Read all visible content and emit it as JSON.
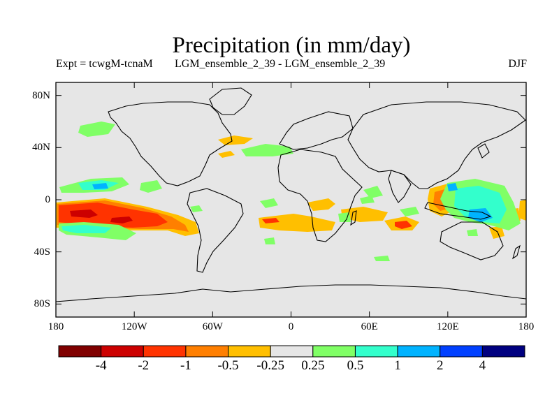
{
  "title": "Precipitation (in mm/day)",
  "experiment_label": "Expt = tcwgM-tcnaM",
  "comparison_label": "LGM_ensemble_2_39 - LGM_ensemble_2_39",
  "season": "DJF",
  "map": {
    "lon_range": [
      -180,
      180
    ],
    "lat_range": [
      -90,
      90
    ],
    "background_color": "#e6e6e6",
    "lat_ticks": [
      {
        "value": 80,
        "label": "80N"
      },
      {
        "value": 40,
        "label": "40N"
      },
      {
        "value": 0,
        "label": "0"
      },
      {
        "value": -40,
        "label": "40S"
      },
      {
        "value": -80,
        "label": "80S"
      }
    ],
    "lon_ticks": [
      {
        "value": -180,
        "label": "180"
      },
      {
        "value": -120,
        "label": "120W"
      },
      {
        "value": -60,
        "label": "60W"
      },
      {
        "value": 0,
        "label": "0"
      },
      {
        "value": 60,
        "label": "60E"
      },
      {
        "value": 120,
        "label": "120E"
      },
      {
        "value": 180,
        "label": "180"
      }
    ]
  },
  "colorbar": {
    "colors": [
      "#800000",
      "#cc0000",
      "#ff3300",
      "#ff7f00",
      "#ffbf00",
      "#e6e6e6",
      "#80ff66",
      "#33ffcc",
      "#00b3ff",
      "#0040ff",
      "#000080"
    ],
    "labels": [
      "-4",
      "-2",
      "-1",
      "-0.5",
      "-0.25",
      "0.25",
      "0.5",
      "1",
      "2",
      "4"
    ]
  },
  "anomaly_regions": [
    {
      "name": "tropical-east-pacific-strong-decrease",
      "level": "-1 to -2",
      "color": "#ff3300"
    },
    {
      "name": "tropical-east-pacific-core",
      "level": "-2 to -4",
      "color": "#cc0000"
    },
    {
      "name": "north-pacific-increase",
      "level": "0.25 to 0.5",
      "color": "#80ff66"
    },
    {
      "name": "central-pacific-increase-north",
      "level": "1 to 2",
      "color": "#00b3ff"
    },
    {
      "name": "south-pacific-increase",
      "level": "0.5 to 1",
      "color": "#33ffcc"
    },
    {
      "name": "south-atlantic-indian-decrease",
      "level": "-0.25 to -0.5",
      "color": "#ffbf00"
    },
    {
      "name": "maritime-continent-decrease",
      "level": "-0.5 to -1",
      "color": "#ff7f00"
    },
    {
      "name": "west-pacific-increase",
      "level": "1 to 2",
      "color": "#00b3ff"
    },
    {
      "name": "indian-ocean-decrease",
      "level": "-1 to -2",
      "color": "#ff3300"
    }
  ]
}
